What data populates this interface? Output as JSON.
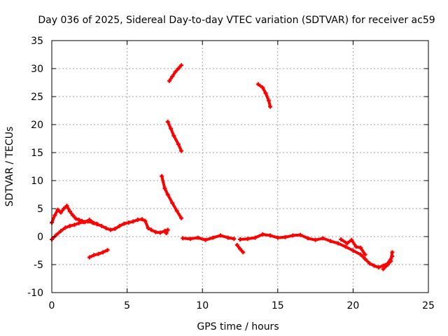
{
  "chart_data": {
    "type": "scatter",
    "title": "Day 036 of 2025, Sidereal Day-to-day VTEC variation (SDTVAR) for receiver ac59",
    "xlabel": "GPS time / hours",
    "ylabel": "SDTVAR / TECUs",
    "xlim": [
      0,
      25
    ],
    "ylim": [
      -10,
      35
    ],
    "xticks": [
      0,
      5,
      10,
      15,
      20,
      25
    ],
    "yticks": [
      -10,
      -5,
      0,
      5,
      10,
      15,
      20,
      25,
      30,
      35
    ],
    "grid": true,
    "color": "#ff0000",
    "series": [
      {
        "name": "segment-1",
        "points": [
          [
            0.0,
            2.5
          ],
          [
            0.2,
            3.8
          ],
          [
            0.4,
            4.8
          ],
          [
            0.6,
            4.3
          ],
          [
            0.8,
            5.0
          ],
          [
            1.0,
            5.5
          ],
          [
            1.2,
            4.5
          ],
          [
            1.4,
            3.8
          ],
          [
            1.6,
            3.2
          ],
          [
            1.8,
            3.0
          ],
          [
            2.0,
            2.8
          ],
          [
            2.2,
            2.6
          ],
          [
            2.5,
            3.0
          ],
          [
            2.8,
            2.4
          ],
          [
            3.0,
            2.3
          ]
        ]
      },
      {
        "name": "segment-2",
        "points": [
          [
            0.0,
            -0.5
          ],
          [
            0.3,
            0.3
          ],
          [
            0.6,
            1.0
          ],
          [
            0.9,
            1.6
          ],
          [
            1.2,
            1.9
          ],
          [
            1.5,
            2.1
          ],
          [
            1.8,
            2.4
          ],
          [
            2.1,
            2.6
          ],
          [
            2.4,
            2.7
          ],
          [
            2.7,
            2.5
          ],
          [
            3.0,
            2.2
          ],
          [
            3.3,
            1.9
          ],
          [
            3.6,
            1.5
          ],
          [
            3.9,
            1.2
          ],
          [
            4.2,
            1.4
          ],
          [
            4.5,
            1.9
          ],
          [
            4.8,
            2.3
          ],
          [
            5.1,
            2.5
          ],
          [
            5.4,
            2.7
          ],
          [
            5.7,
            3.0
          ],
          [
            6.0,
            3.1
          ],
          [
            6.2,
            2.8
          ],
          [
            6.4,
            1.5
          ],
          [
            6.6,
            1.2
          ],
          [
            6.9,
            0.8
          ],
          [
            7.2,
            0.7
          ],
          [
            7.5,
            1.0
          ],
          [
            7.7,
            1.2
          ],
          [
            7.6,
            0.6
          ]
        ]
      },
      {
        "name": "segment-3",
        "points": [
          [
            2.5,
            -3.7
          ],
          [
            2.8,
            -3.3
          ],
          [
            3.1,
            -3.1
          ],
          [
            3.4,
            -2.8
          ],
          [
            3.7,
            -2.4
          ]
        ]
      },
      {
        "name": "segment-4",
        "points": [
          [
            7.3,
            10.8
          ],
          [
            7.5,
            8.6
          ],
          [
            7.7,
            7.5
          ],
          [
            8.0,
            6.0
          ],
          [
            8.3,
            4.6
          ],
          [
            8.6,
            3.3
          ]
        ]
      },
      {
        "name": "segment-5",
        "points": [
          [
            7.7,
            20.5
          ],
          [
            7.9,
            19.3
          ],
          [
            8.1,
            18.0
          ],
          [
            8.4,
            16.5
          ],
          [
            8.6,
            15.3
          ]
        ]
      },
      {
        "name": "segment-6",
        "points": [
          [
            7.8,
            27.8
          ],
          [
            8.0,
            28.6
          ],
          [
            8.2,
            29.4
          ],
          [
            8.4,
            30.0
          ],
          [
            8.6,
            30.6
          ]
        ]
      },
      {
        "name": "segment-7",
        "points": [
          [
            8.7,
            -0.3
          ],
          [
            9.2,
            -0.4
          ],
          [
            9.7,
            -0.2
          ],
          [
            10.2,
            -0.6
          ],
          [
            10.7,
            -0.2
          ],
          [
            11.2,
            0.2
          ],
          [
            11.7,
            -0.2
          ],
          [
            12.1,
            -0.4
          ]
        ]
      },
      {
        "name": "segment-8",
        "points": [
          [
            12.3,
            -1.5
          ],
          [
            12.5,
            -2.2
          ],
          [
            12.7,
            -2.8
          ]
        ]
      },
      {
        "name": "segment-9",
        "points": [
          [
            13.7,
            27.2
          ],
          [
            14.0,
            26.6
          ],
          [
            14.2,
            25.6
          ],
          [
            14.4,
            24.3
          ],
          [
            14.5,
            23.2
          ]
        ]
      },
      {
        "name": "segment-10",
        "points": [
          [
            12.5,
            -0.5
          ],
          [
            13.0,
            -0.4
          ],
          [
            13.5,
            -0.2
          ],
          [
            14.0,
            0.4
          ],
          [
            14.5,
            0.2
          ],
          [
            15.0,
            -0.2
          ],
          [
            15.5,
            -0.1
          ],
          [
            16.0,
            0.2
          ],
          [
            16.5,
            0.3
          ],
          [
            17.0,
            -0.3
          ],
          [
            17.5,
            -0.6
          ],
          [
            18.0,
            -0.3
          ],
          [
            18.5,
            -0.8
          ],
          [
            19.0,
            -1.2
          ],
          [
            19.5,
            -1.8
          ],
          [
            20.0,
            -2.5
          ],
          [
            20.5,
            -3.2
          ],
          [
            20.8,
            -4.0
          ],
          [
            21.1,
            -4.8
          ],
          [
            21.4,
            -5.2
          ],
          [
            21.7,
            -5.5
          ],
          [
            22.0,
            -5.2
          ],
          [
            22.3,
            -4.8
          ],
          [
            22.6,
            -3.5
          ]
        ]
      },
      {
        "name": "segment-11",
        "points": [
          [
            19.2,
            -0.5
          ],
          [
            19.6,
            -1.2
          ],
          [
            19.9,
            -0.6
          ],
          [
            20.2,
            -1.8
          ],
          [
            20.5,
            -2.0
          ],
          [
            20.8,
            -3.2
          ]
        ]
      },
      {
        "name": "segment-12",
        "points": [
          [
            22.0,
            -5.8
          ],
          [
            22.3,
            -5.0
          ],
          [
            22.5,
            -4.4
          ],
          [
            22.6,
            -2.8
          ]
        ]
      }
    ]
  }
}
